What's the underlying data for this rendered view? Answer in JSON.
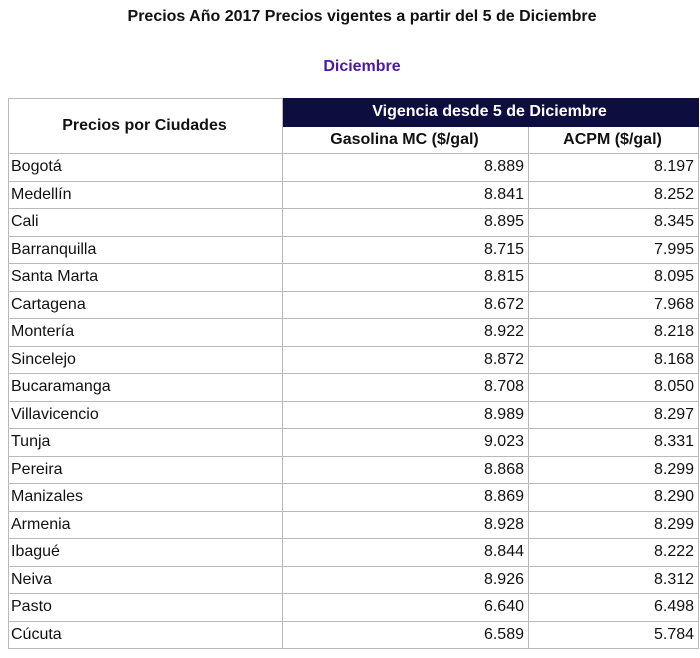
{
  "header": {
    "title": "Precios Año 2017 Precios vigentes a partir del 5 de Diciembre",
    "month": "Diciembre"
  },
  "table": {
    "row_header": "Precios por Ciudades",
    "group_header": "Vigencia desde 5 de Diciembre",
    "columns": [
      "Gasolina MC ($/gal)",
      "ACPM ($/gal)"
    ],
    "rows": [
      [
        "Bogotá",
        "8.889",
        "8.197"
      ],
      [
        "Medellín",
        "8.841",
        "8.252"
      ],
      [
        "Cali",
        "8.895",
        "8.345"
      ],
      [
        "Barranquilla",
        "8.715",
        "7.995"
      ],
      [
        "Santa Marta",
        "8.815",
        "8.095"
      ],
      [
        "Cartagena",
        "8.672",
        "7.968"
      ],
      [
        "Montería",
        "8.922",
        "8.218"
      ],
      [
        "Sincelejo",
        "8.872",
        "8.168"
      ],
      [
        "Bucaramanga",
        "8.708",
        "8.050"
      ],
      [
        "Villavicencio",
        "8.989",
        "8.297"
      ],
      [
        "Tunja",
        "9.023",
        "8.331"
      ],
      [
        "Pereira",
        "8.868",
        "8.299"
      ],
      [
        "Manizales",
        "8.869",
        "8.290"
      ],
      [
        "Armenia",
        "8.928",
        "8.299"
      ],
      [
        "Ibagué",
        "8.844",
        "8.222"
      ],
      [
        "Neiva",
        "8.926",
        "8.312"
      ],
      [
        "Pasto",
        "6.640",
        "6.498"
      ],
      [
        "Cúcuta",
        "6.589",
        "5.784"
      ]
    ]
  }
}
